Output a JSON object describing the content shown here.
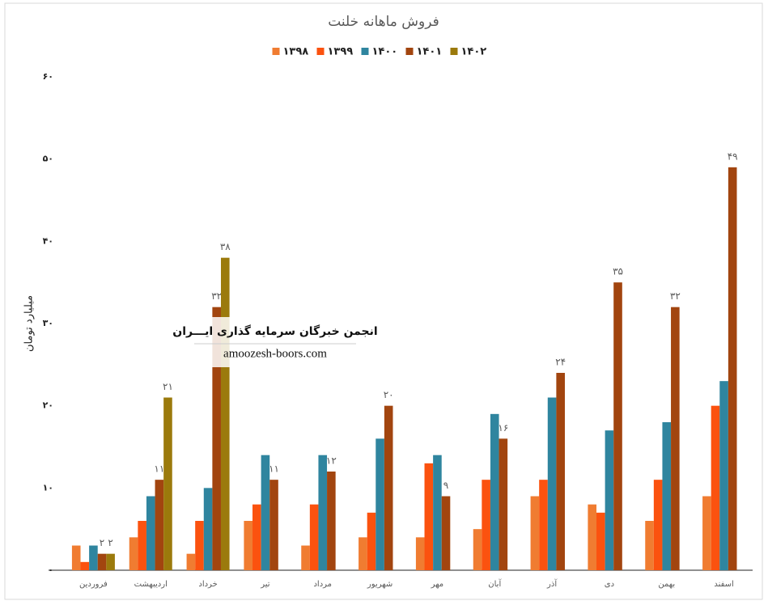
{
  "chart_data": {
    "type": "bar",
    "title": "فروش ماهانه خلنت",
    "y_label": "میلیارد تومان",
    "categories": [
      "فروردین",
      "اردیبهشت",
      "خرداد",
      "تیر",
      "مرداد",
      "شهریور",
      "مهر",
      "آبان",
      "آذر",
      "دی",
      "بهمن",
      "اسفند"
    ],
    "series": [
      {
        "name": "۱۳۹۸",
        "color": "#f07c31",
        "values": [
          3,
          4,
          2,
          6,
          3,
          4,
          4,
          5,
          9,
          8,
          6,
          9
        ]
      },
      {
        "name": "۱۳۹۹",
        "color": "#fb520f",
        "values": [
          1,
          6,
          6,
          8,
          8,
          7,
          13,
          11,
          11,
          7,
          11,
          20
        ]
      },
      {
        "name": "۱۴۰۰",
        "color": "#2f859f",
        "values": [
          3,
          9,
          10,
          14,
          14,
          16,
          14,
          19,
          21,
          17,
          18,
          23
        ]
      },
      {
        "name": "۱۴۰۱",
        "color": "#a2450f",
        "values": [
          2,
          11,
          32,
          11,
          12,
          20,
          9,
          16,
          24,
          35,
          32,
          49
        ],
        "value_labels": [
          "۲",
          "۱۱",
          "۳۲",
          "۱۱",
          "۱۲",
          "۲۰",
          "۹",
          "۱۶",
          "۲۴",
          "۳۵",
          "۳۲",
          "۴۹"
        ]
      },
      {
        "name": "۱۴۰۲",
        "color": "#9b7a0c",
        "values": [
          2,
          21,
          38,
          null,
          null,
          null,
          null,
          null,
          null,
          null,
          null,
          null
        ],
        "value_labels": [
          "۲",
          "۲۱",
          "۳۸",
          null,
          null,
          null,
          null,
          null,
          null,
          null,
          null,
          null
        ]
      }
    ],
    "ylim": [
      0,
      60
    ],
    "yticks": [
      {
        "value": 0,
        "label": "۰"
      },
      {
        "value": 10,
        "label": "۱۰"
      },
      {
        "value": 20,
        "label": "۲۰"
      },
      {
        "value": 30,
        "label": "۳۰"
      },
      {
        "value": 40,
        "label": "۴۰"
      },
      {
        "value": 50,
        "label": "۵۰"
      },
      {
        "value": 60,
        "label": "۶۰"
      }
    ],
    "grid": false,
    "legend": "top"
  },
  "watermark": {
    "title": "انجمن خبرگان سرمایه گذاری ایـــران",
    "site": "amoozesh-boors.com"
  }
}
